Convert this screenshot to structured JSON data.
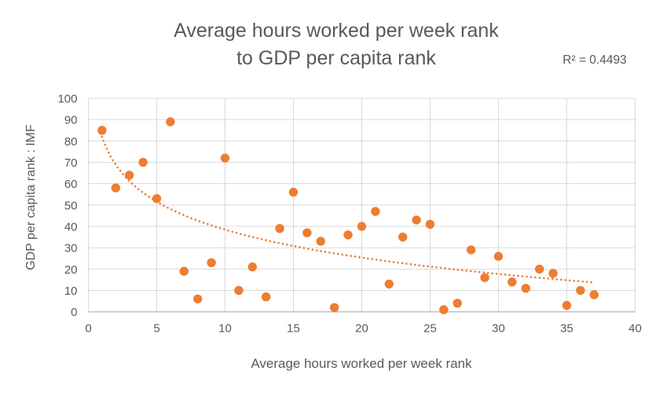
{
  "chart": {
    "title_line1": "Average hours worked per week rank",
    "title_line2": "to GDP per capita rank",
    "r_squared_label": "R² = 0.4493",
    "colors": {
      "point": "#ED7D31",
      "trendline": "#ED7D31",
      "text": "#595959",
      "gridline": "#D9D9D9",
      "axis_line": "#BFBFBF",
      "background": "#FFFFFF"
    }
  },
  "chart_data": {
    "type": "scatter",
    "title": "Average hours worked per week rank to GDP per capita rank",
    "xlabel": "Average hours worked per week rank",
    "ylabel": "GDP per capita rank : IMF",
    "xlim": [
      0,
      40
    ],
    "ylim": [
      0,
      100
    ],
    "x_ticks": [
      0,
      5,
      10,
      15,
      20,
      25,
      30,
      35,
      40
    ],
    "y_ticks": [
      0,
      10,
      20,
      30,
      40,
      50,
      60,
      70,
      80,
      90,
      100
    ],
    "grid": true,
    "legend": false,
    "r_squared": 0.4493,
    "x": [
      1,
      2,
      3,
      4,
      5,
      6,
      7,
      8,
      9,
      10,
      11,
      12,
      13,
      14,
      15,
      16,
      17,
      18,
      19,
      20,
      21,
      22,
      23,
      24,
      25,
      26,
      27,
      28,
      29,
      30,
      31,
      32,
      33,
      34,
      35,
      36,
      37
    ],
    "y": [
      85,
      58,
      64,
      70,
      53,
      89,
      19,
      6,
      23,
      72,
      10,
      21,
      7,
      39,
      56,
      37,
      33,
      2,
      36,
      40,
      47,
      13,
      35,
      43,
      41,
      1,
      4,
      29,
      16,
      26,
      14,
      11,
      20,
      18,
      3,
      10,
      8
    ],
    "trendline": {
      "type": "logarithmic",
      "formula": "y = 82 - 18.9*ln(x)",
      "a": 82,
      "b": -18.9,
      "x_start": 1,
      "x_end": 36.8,
      "style": "dotted"
    }
  }
}
